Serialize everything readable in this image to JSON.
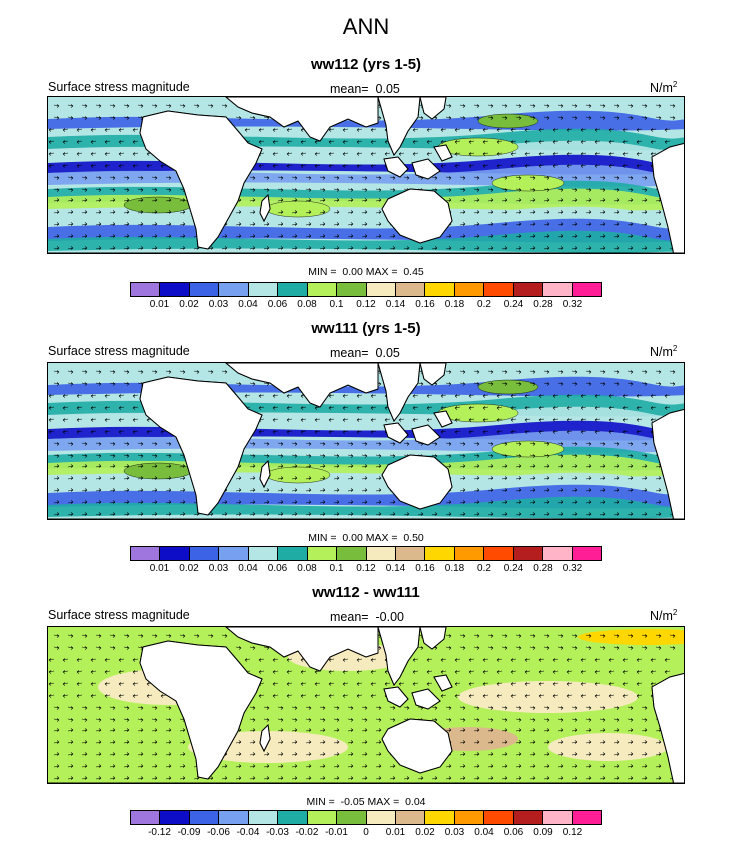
{
  "title": "ANN",
  "colors": {
    "abs": [
      "#9f76de",
      "#0d0dc8",
      "#3c62e6",
      "#78a0f0",
      "#b4e6e6",
      "#1eaca5",
      "#b4f05a",
      "#78be3c",
      "#f5ebbe",
      "#dcb98c",
      "#ffd700",
      "#ff9b00",
      "#ff4b00",
      "#b41e1e",
      "#ffb4c8",
      "#ff1e96"
    ],
    "diff": [
      "#9f76de",
      "#0d0dc8",
      "#3c62e6",
      "#78a0f0",
      "#b4e6e6",
      "#1eaca5",
      "#b4f05a",
      "#78be3c",
      "#f5ebbe",
      "#dcb98c",
      "#ffd700",
      "#ff9b00",
      "#ff4b00",
      "#b41e1e",
      "#ffb4c8",
      "#ff1e96"
    ],
    "land": "#ffffff",
    "coast": "#000000"
  },
  "panels": [
    {
      "title": "ww112 (yrs 1-5)",
      "left_label": "Surface stress magnitude",
      "mean_label": "mean=  0.05",
      "units": "N/m",
      "units_sup": "2",
      "minmax": "MIN =  0.00 MAX =  0.45",
      "ticks": [
        "0.01",
        "0.02",
        "0.03",
        "0.04",
        "0.06",
        "0.08",
        "0.1",
        "0.12",
        "0.14",
        "0.16",
        "0.18",
        "0.2",
        "0.24",
        "0.28",
        "0.32"
      ]
    },
    {
      "title": "ww111 (yrs 1-5)",
      "left_label": "Surface stress magnitude",
      "mean_label": "mean=  0.05",
      "units": "N/m",
      "units_sup": "2",
      "minmax": "MIN =  0.00 MAX =  0.50",
      "ticks": [
        "0.01",
        "0.02",
        "0.03",
        "0.04",
        "0.06",
        "0.08",
        "0.1",
        "0.12",
        "0.14",
        "0.16",
        "0.18",
        "0.2",
        "0.24",
        "0.28",
        "0.32"
      ]
    },
    {
      "title": "ww112 - ww111",
      "left_label": "Surface stress magnitude",
      "mean_label": "mean=  -0.00",
      "units": "N/m",
      "units_sup": "2",
      "minmax": "MIN =  -0.05 MAX =  0.04",
      "ticks": [
        "-0.12",
        "-0.09",
        "-0.06",
        "-0.04",
        "-0.03",
        "-0.02",
        "-0.01",
        "0",
        "0.01",
        "0.02",
        "0.03",
        "0.04",
        "0.06",
        "0.09",
        "0.12"
      ]
    }
  ]
}
